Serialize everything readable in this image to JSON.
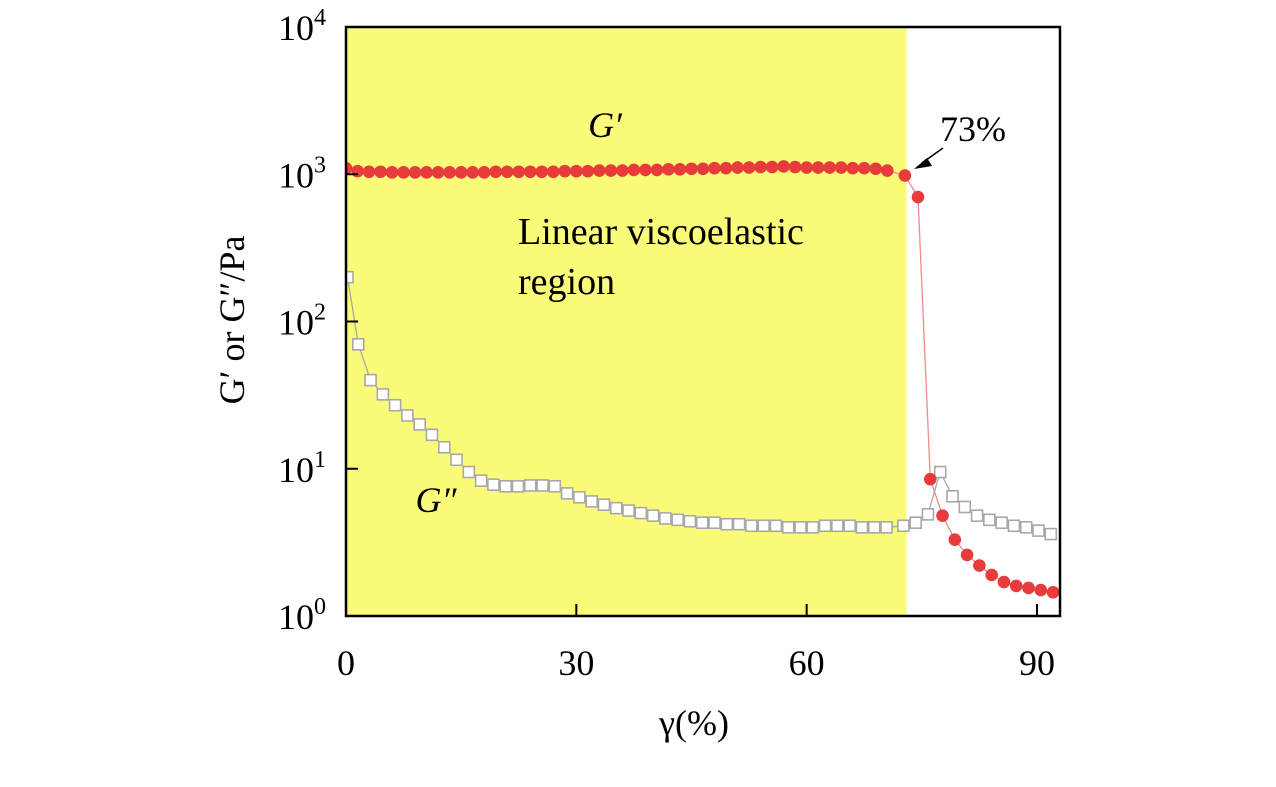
{
  "chart_data": {
    "type": "scatter",
    "title": "",
    "xlabel": "γ(%)",
    "ylabel": "G′ or G″/Pa",
    "xlim": [
      0,
      93
    ],
    "ylim": [
      1,
      10000
    ],
    "yscale": "log",
    "grid": false,
    "x_ticks": [
      "0",
      "30",
      "60",
      "90"
    ],
    "x_tick_values": [
      0,
      30,
      60,
      90
    ],
    "y_tick_values": [
      1,
      10,
      100,
      1000,
      10000
    ],
    "y_ticks": [
      {
        "base": "10",
        "exp": "0"
      },
      {
        "base": "10",
        "exp": "1"
      },
      {
        "base": "10",
        "exp": "2"
      },
      {
        "base": "10",
        "exp": "3"
      },
      {
        "base": "10",
        "exp": "4"
      }
    ],
    "shaded_region": {
      "x_start": 0,
      "x_end": 73,
      "color": "#fbfb7a",
      "label": [
        "Linear viscoelastic",
        "region"
      ]
    },
    "annotation": {
      "text": "73%",
      "x": 73,
      "y": 980
    },
    "series": [
      {
        "name": "G′",
        "marker": "filled-circle",
        "color": "#e83b3b",
        "line_color": "#f08a8a",
        "x": [
          0,
          1.5,
          3,
          4.5,
          6,
          7.5,
          9,
          10.5,
          12,
          13.5,
          15,
          16.5,
          18,
          19.5,
          21,
          22.5,
          24,
          25.5,
          27,
          28.5,
          30,
          31.5,
          33,
          34.5,
          36,
          37.5,
          39,
          40.5,
          42,
          43.5,
          45,
          46.5,
          48,
          49.5,
          51,
          52.5,
          54,
          55.5,
          57,
          58.5,
          60,
          61.5,
          63,
          64.5,
          66,
          67.5,
          69,
          70.5,
          72.8,
          74.5,
          76.1,
          77.7,
          79.3,
          80.9,
          82.5,
          84.1,
          85.7,
          87.3,
          88.9,
          90.5,
          92.1
        ],
        "y": [
          1100,
          1050,
          1040,
          1040,
          1030,
          1030,
          1030,
          1030,
          1030,
          1030,
          1030,
          1030,
          1030,
          1040,
          1040,
          1040,
          1040,
          1040,
          1040,
          1050,
          1050,
          1050,
          1060,
          1060,
          1060,
          1070,
          1070,
          1070,
          1080,
          1080,
          1090,
          1090,
          1100,
          1100,
          1110,
          1110,
          1120,
          1120,
          1130,
          1120,
          1110,
          1110,
          1110,
          1110,
          1100,
          1100,
          1090,
          1060,
          980,
          700,
          8.5,
          4.8,
          3.3,
          2.6,
          2.2,
          1.9,
          1.7,
          1.6,
          1.55,
          1.5,
          1.45
        ]
      },
      {
        "name": "G″",
        "marker": "open-square",
        "color": "#a8a8a8",
        "line_color": "#a8a8a8",
        "x": [
          0.2,
          1.6,
          3.2,
          4.8,
          6.4,
          8.0,
          9.6,
          11.2,
          12.8,
          14.4,
          16.0,
          17.6,
          19.2,
          20.8,
          22.4,
          24.0,
          25.6,
          27.2,
          28.8,
          30.4,
          32.0,
          33.6,
          35.2,
          36.8,
          38.4,
          40.0,
          41.6,
          43.2,
          44.8,
          46.4,
          48.0,
          49.6,
          51.2,
          52.8,
          54.4,
          56.0,
          57.6,
          59.2,
          60.8,
          62.4,
          64.0,
          65.6,
          67.2,
          68.8,
          70.4,
          72.6,
          74.2,
          75.8,
          77.4,
          79.0,
          80.6,
          82.2,
          83.8,
          85.4,
          87.0,
          88.6,
          90.2,
          91.8
        ],
        "y": [
          200,
          70,
          40,
          32,
          27,
          23,
          20,
          17,
          14,
          11.5,
          9.5,
          8.3,
          7.8,
          7.6,
          7.6,
          7.7,
          7.7,
          7.6,
          6.8,
          6.4,
          6.0,
          5.7,
          5.4,
          5.2,
          5.0,
          4.8,
          4.6,
          4.5,
          4.4,
          4.3,
          4.3,
          4.2,
          4.2,
          4.1,
          4.1,
          4.1,
          4.0,
          4.0,
          4.0,
          4.1,
          4.1,
          4.1,
          4.0,
          4.0,
          4.0,
          4.1,
          4.3,
          4.9,
          9.5,
          6.5,
          5.5,
          4.8,
          4.5,
          4.3,
          4.1,
          4.0,
          3.8,
          3.6
        ]
      }
    ]
  }
}
